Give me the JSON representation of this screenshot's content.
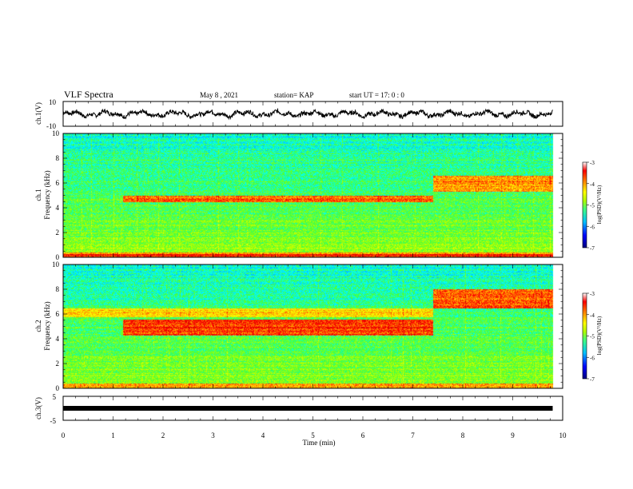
{
  "header": {
    "title": "VLF Spectra",
    "date": "May 8 , 2021",
    "station": "station= KAP",
    "start": "start UT = 17: 0 : 0"
  },
  "chart_data": [
    {
      "type": "line",
      "name": "ch1-waveform",
      "ylabel": "ch.1(V)",
      "ylim": [
        -10,
        10
      ],
      "yticks": [
        "10",
        "-10"
      ],
      "xlim": [
        0,
        10
      ],
      "data_range": [
        0,
        9.8
      ],
      "approx_mean": 0,
      "approx_amplitude": 4
    },
    {
      "type": "heatmap",
      "name": "ch1-spectrogram",
      "ylabel_lines": [
        "ch.1",
        "Frequency (kHz)"
      ],
      "ylim": [
        0,
        10
      ],
      "yticks": [
        "0",
        "2",
        "4",
        "6",
        "8",
        "10"
      ],
      "xlim": [
        0,
        10
      ],
      "data_range": [
        0,
        9.8
      ],
      "colorbar": {
        "label": "log(PSD)(V²/Hz)",
        "range": [
          -7,
          -3
        ],
        "ticks": [
          "-3",
          "-4",
          "-5",
          "-6",
          "-7"
        ]
      },
      "features": [
        {
          "band_khz": [
            4.5,
            5.0
          ],
          "time_min": [
            1.2,
            7.4
          ],
          "level": -3.8
        },
        {
          "band_khz": [
            5.3,
            6.6
          ],
          "time_min": [
            7.4,
            9.8
          ],
          "level": -3.9
        },
        {
          "band_khz": [
            0,
            0.3
          ],
          "time_min": [
            0,
            9.8
          ],
          "level": -3.5
        }
      ]
    },
    {
      "type": "heatmap",
      "name": "ch2-spectrogram",
      "ylabel_lines": [
        "ch.2",
        "Frequency (kHz)"
      ],
      "ylim": [
        0,
        10
      ],
      "yticks": [
        "0",
        "2",
        "4",
        "6",
        "8",
        "10"
      ],
      "xlim": [
        0,
        10
      ],
      "data_range": [
        0,
        9.8
      ],
      "colorbar": {
        "label": "log(PSD)(V²/Hz)",
        "range": [
          -7,
          -3
        ],
        "ticks": [
          "-3",
          "-4",
          "-5",
          "-6",
          "-7"
        ]
      },
      "features": [
        {
          "band_khz": [
            4.3,
            5.6
          ],
          "time_min": [
            1.2,
            7.4
          ],
          "level": -3.6
        },
        {
          "band_khz": [
            6.5,
            8.0
          ],
          "time_min": [
            7.4,
            9.8
          ],
          "level": -3.7
        },
        {
          "band_khz": [
            5.8,
            6.5
          ],
          "time_min": [
            0,
            7.4
          ],
          "level": -4.2
        }
      ]
    },
    {
      "type": "line",
      "name": "ch3-signal",
      "ylabel": "ch.3(V)",
      "ylim": [
        -5,
        5
      ],
      "yticks": [
        "5",
        "-5"
      ],
      "xlim": [
        0,
        10
      ],
      "data_range": [
        0,
        9.8
      ],
      "level": 0
    }
  ],
  "xaxis": {
    "label": "Time (min)",
    "ticks": [
      "0",
      "1",
      "2",
      "3",
      "4",
      "5",
      "6",
      "7",
      "8",
      "9",
      "10"
    ]
  },
  "colors": {
    "colormap": [
      "#00007f",
      "#0000ff",
      "#00a0ff",
      "#00ffff",
      "#40ff40",
      "#b0ff00",
      "#ffff00",
      "#ff9000",
      "#ff0000",
      "#c00000"
    ],
    "line": "#000000"
  }
}
